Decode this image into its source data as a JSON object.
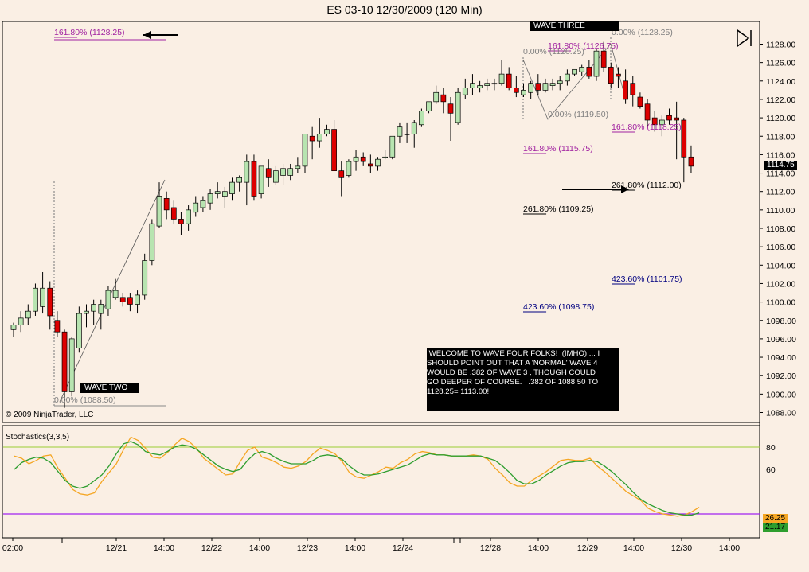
{
  "title": "ES 03-10  12/30/2009 (120 Min)",
  "copyright": "© 2009 NinjaTrader, LLC",
  "wave_two_label": "WAVE TWO",
  "wave_three_label": "WAVE THREE",
  "note": " WELCOME TO WAVE FOUR FOLKS!  (IMHO) ... I\nSHOULD POINT OUT THAT A 'NORMAL' WAVE 4\nWOULD BE .382 OF WAVE 3 , THOUGH COULD\nGO DEEPER OF COURSE.   .382 OF 1088.50 TO\n1128.25= 1113.00!",
  "last_price": "1114.75",
  "stoch_label": "Stochastics(3,3,5)",
  "stoch_k_value": "26.25",
  "stoch_d_value": "21.17",
  "colors": {
    "background": "#faefe4",
    "up_candle": "#b7e4b0",
    "down_candle": "#dd0000",
    "stoch_k": "#f5a623",
    "stoch_d": "#2e9e2e",
    "fib_purple": "#a020a0",
    "fib_gray": "#808080",
    "fib_navy": "#000080"
  },
  "fib_labels": [
    {
      "text": "161.80% (1128.25)",
      "price": 1128.25,
      "color": "purple"
    },
    {
      "text": "0.00% (1128.25)",
      "price": 1128.25,
      "color": "gray"
    },
    {
      "text": "161.80% (1126.75)",
      "price": 1126.75,
      "color": "purple"
    },
    {
      "text": "0.00% (1126.25)",
      "price": 1126.25,
      "color": "gray"
    },
    {
      "text": "0.00% (1119.50)",
      "price": 1119.5,
      "color": "gray"
    },
    {
      "text": "161.80% (1118.25)",
      "price": 1118.25,
      "color": "purple"
    },
    {
      "text": "161.80% (1115.75)",
      "price": 1115.75,
      "color": "purple"
    },
    {
      "text": "261.80% (1112.00)",
      "price": 1112.0,
      "color": "black"
    },
    {
      "text": "261.80% (1109.25)",
      "price": 1109.25,
      "color": "black"
    },
    {
      "text": "423.60% (1101.75)",
      "price": 1101.75,
      "color": "navy"
    },
    {
      "text": "423.60% (1098.75)",
      "price": 1098.75,
      "color": "navy"
    },
    {
      "text": "0.00% (1088.50)",
      "price": 1088.5,
      "color": "gray"
    }
  ],
  "chart_data": [
    {
      "type": "candlestick",
      "title": "ES 03-10  12/30/2009 (120 Min)",
      "ylim": [
        1087,
        1129.5
      ],
      "y_ticks": [
        1088,
        1090,
        1092,
        1094,
        1096,
        1098,
        1100,
        1102,
        1104,
        1106,
        1108,
        1110,
        1112,
        1114,
        1116,
        1118,
        1120,
        1122,
        1124,
        1126,
        1128
      ],
      "x_tick_labels": [
        "02:00",
        "12/21",
        "14:00",
        "12/22",
        "14:00",
        "12/23",
        "14:00",
        "12/24",
        "12/28",
        "14:00",
        "12/29",
        "14:00",
        "12/30",
        "14:00"
      ],
      "series": [
        {
          "values": [
            [
              1097.0,
              1097.75,
              1096.25,
              1097.5
            ],
            [
              1097.5,
              1099.0,
              1096.75,
              1098.25
            ],
            [
              1098.25,
              1099.75,
              1097.5,
              1099.0
            ],
            [
              1099.0,
              1102.0,
              1098.5,
              1101.5
            ],
            [
              1099.5,
              1103.25,
              1098.75,
              1101.5
            ],
            [
              1101.5,
              1102.25,
              1097.0,
              1098.5
            ],
            [
              1098.0,
              1099.0,
              1096.25,
              1096.75
            ],
            [
              1096.75,
              1097.0,
              1088.5,
              1090.25
            ],
            [
              1090.25,
              1096.25,
              1089.75,
              1096.0
            ],
            [
              1095.0,
              1099.5,
              1094.5,
              1098.75
            ],
            [
              1098.75,
              1099.75,
              1097.25,
              1099.0
            ],
            [
              1099.0,
              1100.25,
              1097.5,
              1099.75
            ],
            [
              1098.75,
              1100.25,
              1097.0,
              1099.75
            ],
            [
              1099.25,
              1101.75,
              1098.5,
              1101.25
            ],
            [
              1100.5,
              1102.5,
              1100.25,
              1101.25
            ],
            [
              1100.5,
              1101.0,
              1099.5,
              1100.0
            ],
            [
              1100.5,
              1101.0,
              1099.0,
              1099.75
            ],
            [
              1099.75,
              1101.25,
              1098.75,
              1100.75
            ],
            [
              1100.75,
              1105.25,
              1100.25,
              1104.5
            ],
            [
              1104.5,
              1109.0,
              1104.0,
              1108.5
            ],
            [
              1108.25,
              1113.0,
              1108.0,
              1111.5
            ],
            [
              1111.25,
              1112.0,
              1109.0,
              1110.0
            ],
            [
              1110.25,
              1111.0,
              1108.5,
              1109.0
            ],
            [
              1109.0,
              1109.75,
              1107.25,
              1108.5
            ],
            [
              1108.5,
              1110.5,
              1107.75,
              1110.0
            ],
            [
              1109.75,
              1111.5,
              1109.25,
              1110.75
            ],
            [
              1110.25,
              1111.5,
              1109.75,
              1111.0
            ],
            [
              1110.75,
              1112.25,
              1110.0,
              1111.75
            ],
            [
              1111.75,
              1113.0,
              1111.25,
              1112.0
            ],
            [
              1111.5,
              1112.5,
              1110.25,
              1112.0
            ],
            [
              1111.75,
              1113.5,
              1111.0,
              1113.0
            ],
            [
              1113.0,
              1113.75,
              1112.0,
              1113.5
            ],
            [
              1113.0,
              1116.0,
              1110.5,
              1115.25
            ],
            [
              1115.25,
              1116.0,
              1111.0,
              1111.5
            ],
            [
              1111.75,
              1114.75,
              1111.25,
              1114.75
            ],
            [
              1114.5,
              1115.5,
              1112.5,
              1113.5
            ],
            [
              1113.0,
              1114.75,
              1112.75,
              1114.25
            ],
            [
              1113.75,
              1115.0,
              1112.75,
              1114.5
            ],
            [
              1113.75,
              1115.0,
              1113.25,
              1114.5
            ],
            [
              1114.5,
              1115.75,
              1114.0,
              1114.75
            ],
            [
              1114.75,
              1118.0,
              1114.0,
              1118.25
            ],
            [
              1118.0,
              1119.0,
              1115.5,
              1117.5
            ],
            [
              1117.5,
              1120.0,
              1116.75,
              1118.25
            ],
            [
              1118.25,
              1119.25,
              1118.0,
              1118.75
            ],
            [
              1118.75,
              1119.75,
              1114.25,
              1114.25
            ],
            [
              1114.25,
              1115.25,
              1111.5,
              1113.5
            ],
            [
              1113.75,
              1115.5,
              1113.5,
              1115.25
            ],
            [
              1115.25,
              1116.5,
              1114.25,
              1115.75
            ],
            [
              1115.75,
              1116.25,
              1114.75,
              1115.25
            ],
            [
              1115.0,
              1116.0,
              1114.0,
              1114.75
            ],
            [
              1114.75,
              1115.75,
              1114.25,
              1115.5
            ],
            [
              1115.75,
              1116.5,
              1115.5,
              1115.75
            ],
            [
              1115.75,
              1118.0,
              1115.5,
              1118.0
            ],
            [
              1118.0,
              1119.5,
              1117.25,
              1119.0
            ],
            [
              1118.25,
              1119.5,
              1117.25,
              1118.25
            ],
            [
              1118.25,
              1119.75,
              1116.75,
              1119.5
            ],
            [
              1119.25,
              1121.0,
              1119.0,
              1120.75
            ],
            [
              1120.75,
              1121.75,
              1120.5,
              1121.75
            ],
            [
              1121.75,
              1123.5,
              1121.5,
              1122.75
            ],
            [
              1122.5,
              1123.25,
              1120.5,
              1121.75
            ],
            [
              1121.5,
              1122.25,
              1117.5,
              1120.5
            ],
            [
              1119.5,
              1123.25,
              1119.25,
              1122.75
            ],
            [
              1122.5,
              1124.25,
              1122.0,
              1123.25
            ],
            [
              1123.25,
              1124.75,
              1122.5,
              1123.75
            ],
            [
              1123.25,
              1124.0,
              1122.75,
              1123.5
            ],
            [
              1123.5,
              1124.25,
              1123.0,
              1123.75
            ],
            [
              1123.75,
              1124.25,
              1123.0,
              1123.75
            ],
            [
              1123.75,
              1126.25,
              1123.5,
              1124.75
            ],
            [
              1124.75,
              1125.5,
              1123.0,
              1123.25
            ],
            [
              1123.25,
              1124.5,
              1122.25,
              1122.75
            ],
            [
              1122.5,
              1123.75,
              1122.25,
              1123.0
            ],
            [
              1122.75,
              1124.0,
              1122.0,
              1123.75
            ],
            [
              1123.75,
              1124.75,
              1122.5,
              1123.0
            ],
            [
              1123.0,
              1124.25,
              1122.75,
              1123.75
            ],
            [
              1123.5,
              1124.25,
              1123.0,
              1123.75
            ],
            [
              1123.75,
              1124.5,
              1123.0,
              1124.0
            ],
            [
              1124.0,
              1125.25,
              1123.5,
              1124.75
            ],
            [
              1124.75,
              1125.25,
              1124.5,
              1125.25
            ],
            [
              1125.0,
              1125.75,
              1124.5,
              1125.5
            ],
            [
              1125.5,
              1126.25,
              1124.25,
              1124.5
            ],
            [
              1124.5,
              1127.5,
              1124.0,
              1127.25
            ],
            [
              1127.25,
              1128.25,
              1125.0,
              1125.5
            ],
            [
              1125.5,
              1126.0,
              1123.25,
              1123.75
            ],
            [
              1124.75,
              1125.5,
              1123.25,
              1124.5
            ],
            [
              1124.0,
              1125.25,
              1121.5,
              1122.0
            ],
            [
              1123.75,
              1124.5,
              1121.25,
              1122.5
            ],
            [
              1122.25,
              1122.75,
              1121.0,
              1121.25
            ],
            [
              1121.5,
              1122.0,
              1119.0,
              1119.75
            ],
            [
              1120.0,
              1120.75,
              1118.5,
              1119.25
            ],
            [
              1119.25,
              1120.25,
              1118.0,
              1119.75
            ],
            [
              1120.25,
              1121.0,
              1119.25,
              1119.75
            ],
            [
              1120.0,
              1121.75,
              1115.5,
              1119.75
            ],
            [
              1119.75,
              1120.0,
              1113.0,
              1115.75
            ],
            [
              1115.75,
              1117.0,
              1114.0,
              1114.75
            ]
          ]
        }
      ],
      "last": 1114.75
    },
    {
      "type": "line",
      "title": "Stochastics(3,3,5)",
      "ylim": [
        0,
        100
      ],
      "y_ticks": [
        60,
        80
      ],
      "reference_lines": [
        80,
        20
      ],
      "series": [
        {
          "name": "K",
          "values": [
            72,
            70,
            65,
            68,
            72,
            73,
            61,
            52,
            42,
            38,
            37,
            39,
            49,
            57,
            65,
            78,
            89,
            86,
            79,
            71,
            70,
            75,
            82,
            88,
            85,
            79,
            70,
            65,
            60,
            55,
            56,
            67,
            77,
            80,
            71,
            69,
            66,
            62,
            61,
            63,
            67,
            74,
            79,
            77,
            74,
            67,
            57,
            53,
            52,
            55,
            58,
            62,
            61,
            66,
            69,
            74,
            76,
            75,
            73,
            73,
            72,
            72,
            72,
            73,
            72,
            69,
            61,
            55,
            48,
            45,
            45,
            50,
            54,
            58,
            63,
            68,
            69,
            68,
            68,
            70,
            63,
            58,
            52,
            46,
            40,
            36,
            32,
            25,
            22,
            20,
            19,
            18,
            19,
            22,
            26
          ]
        },
        {
          "name": "D",
          "values": [
            60,
            66,
            69,
            71,
            70,
            66,
            58,
            50,
            45,
            43,
            45,
            50,
            55,
            63,
            74,
            83,
            85,
            82,
            76,
            74,
            73,
            76,
            80,
            82,
            81,
            78,
            73,
            68,
            63,
            60,
            58,
            60,
            68,
            74,
            76,
            74,
            70,
            67,
            65,
            65,
            65,
            68,
            72,
            73,
            72,
            69,
            63,
            58,
            55,
            55,
            56,
            58,
            60,
            62,
            64,
            68,
            72,
            74,
            73,
            73,
            72,
            72,
            72,
            72,
            72,
            70,
            68,
            63,
            57,
            50,
            47,
            47,
            50,
            55,
            59,
            63,
            66,
            67,
            67,
            68,
            67,
            63,
            58,
            52,
            46,
            39,
            33,
            29,
            26,
            23,
            21,
            20,
            19,
            19,
            21
          ]
        }
      ]
    }
  ]
}
